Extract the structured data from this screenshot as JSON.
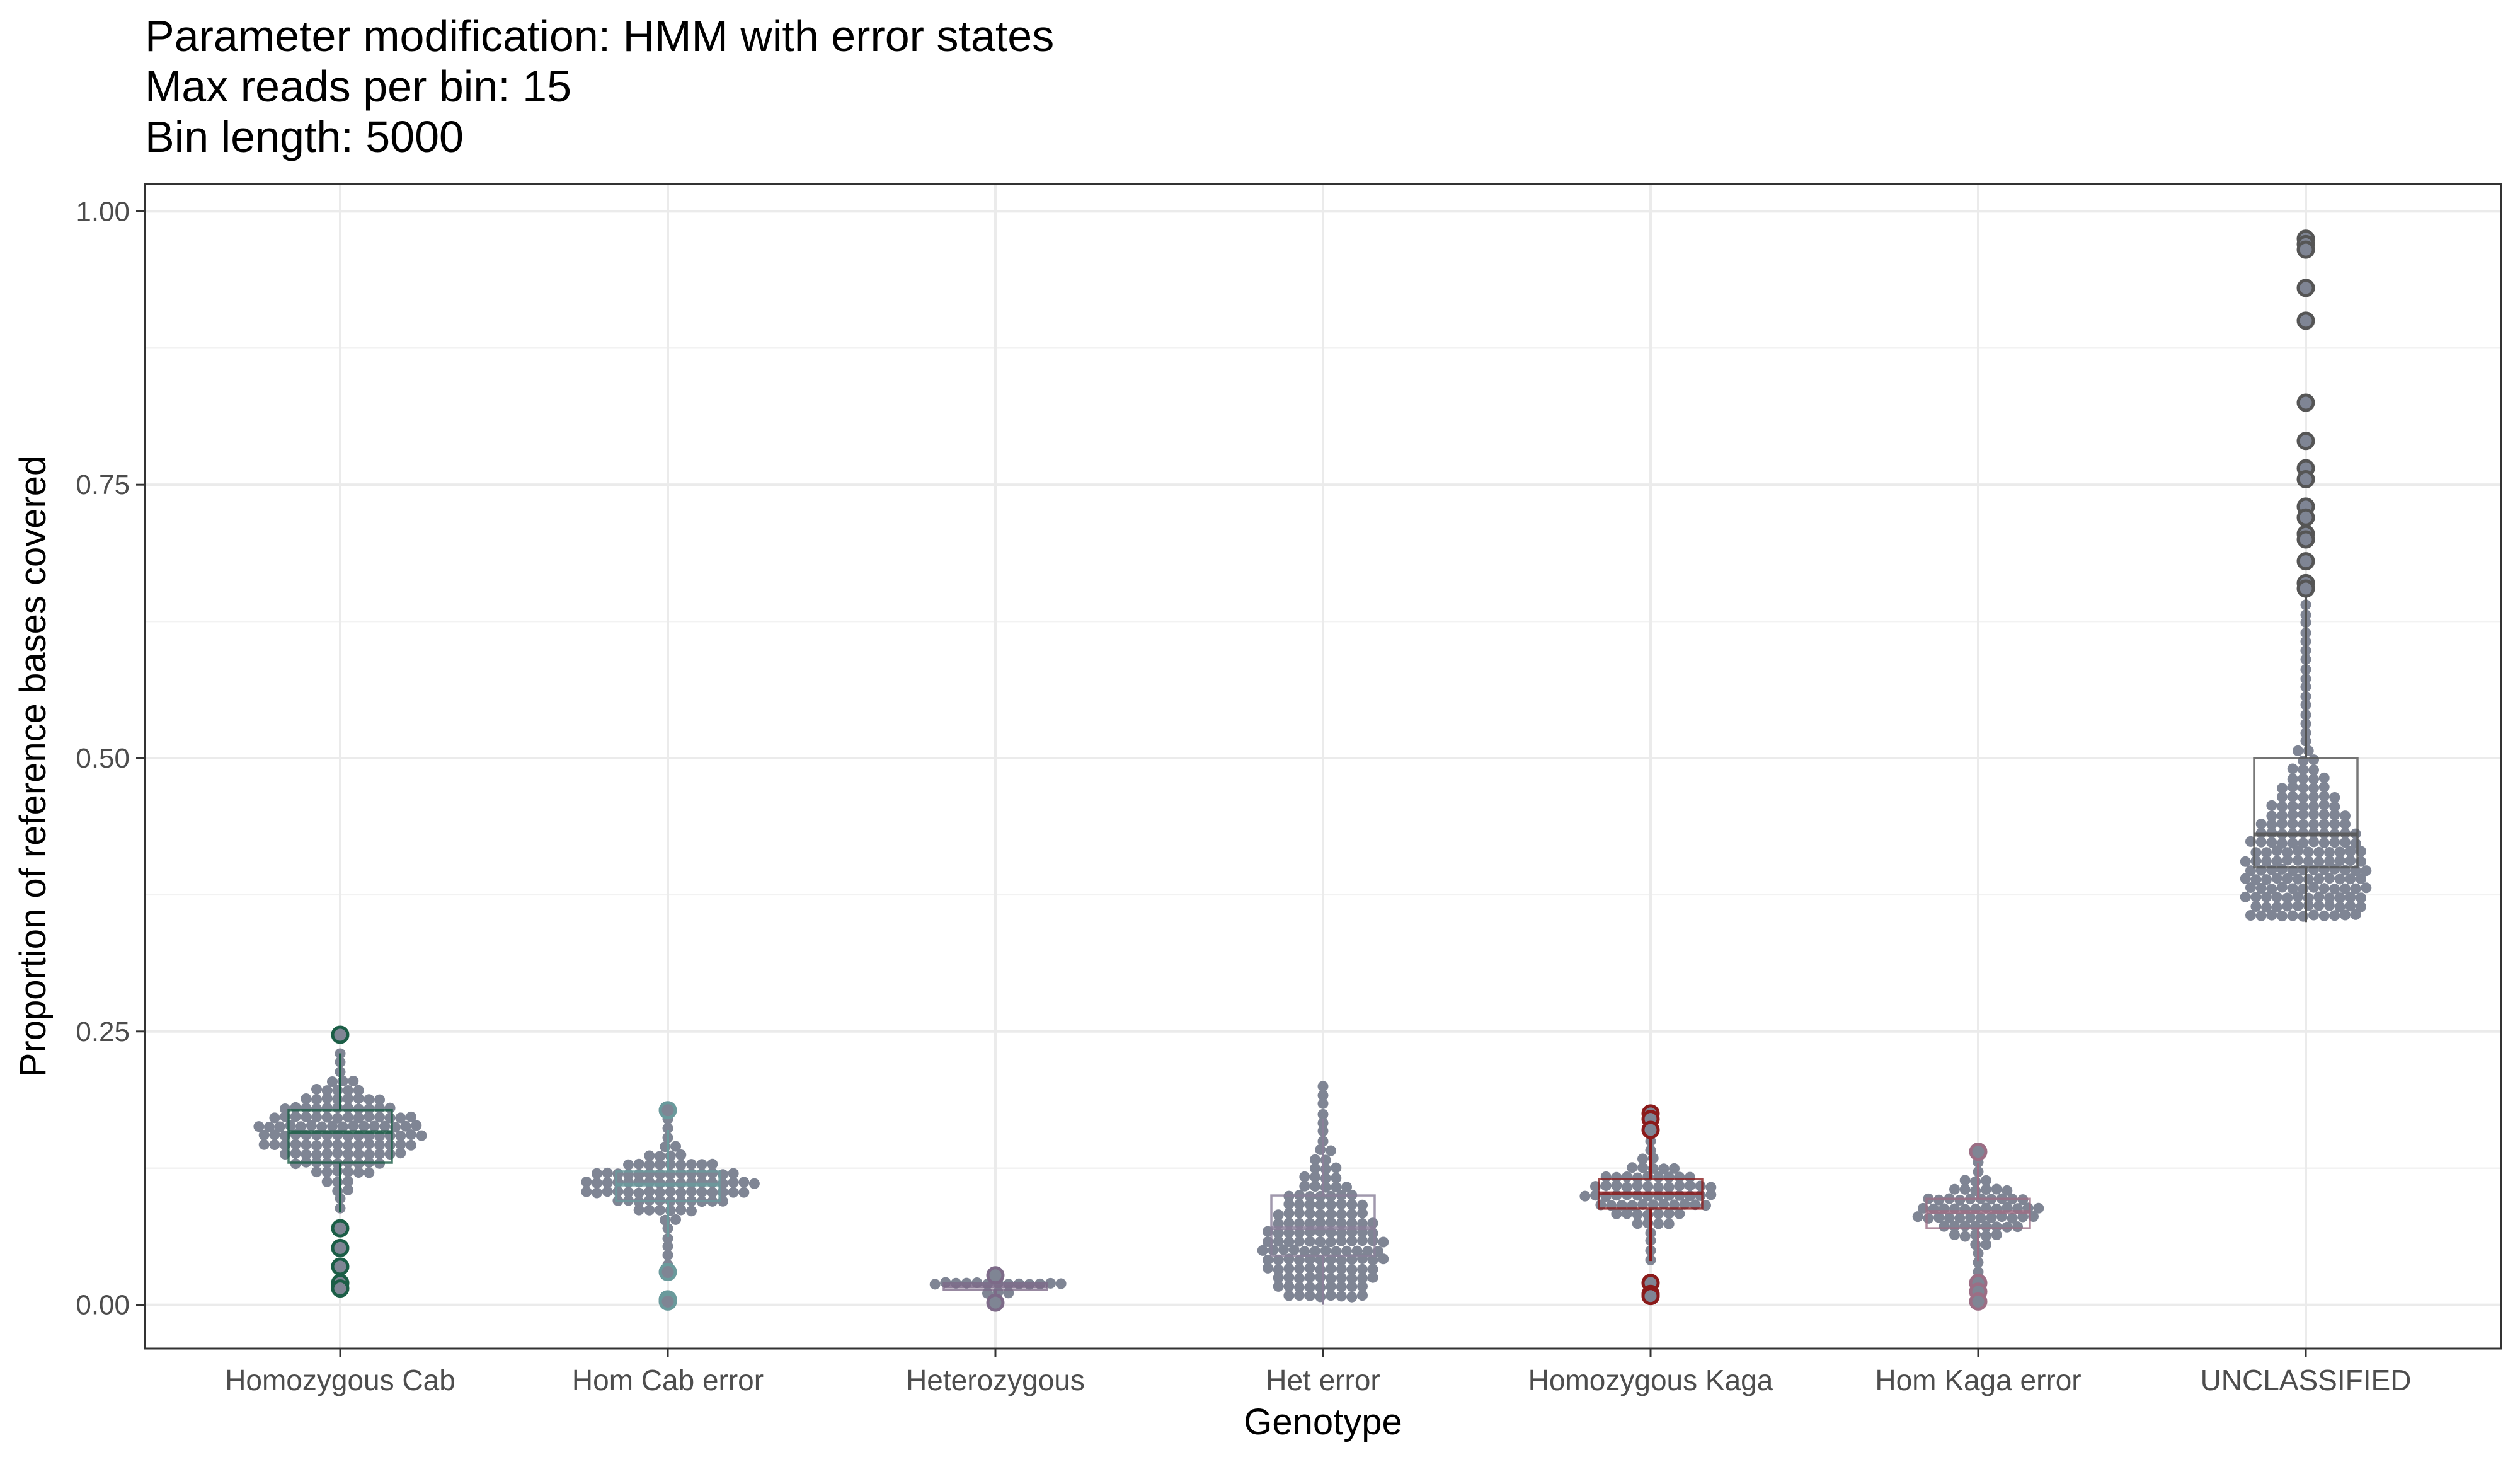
{
  "title_lines": [
    "Parameter modification: HMM with error states",
    "Max reads per bin: 15",
    "Bin length: 5000"
  ],
  "chart_data": {
    "type": "beeswarm",
    "title": "Parameter modification: HMM with error states\nMax reads per bin: 15\nBin length: 5000",
    "xlabel": "Genotype",
    "ylabel": "Proportion of reference bases covered",
    "ylim": [
      -0.04,
      1.025
    ],
    "yticks": [
      "0.00",
      "0.25",
      "0.50",
      "0.75",
      "1.00"
    ],
    "ytick_values": [
      0,
      0.25,
      0.5,
      0.75,
      1.0
    ],
    "grid": true,
    "legend": "none",
    "point_color": "#7f8594",
    "categories": [
      "Homozygous Cab",
      "Hom Cab error",
      "Heterozygous",
      "Het error",
      "Homozygous Kaga",
      "Hom Kaga error",
      "UNCLASSIFIED"
    ],
    "series": [
      {
        "category": "Homozygous Cab",
        "box": {
          "q1": 0.13,
          "median": 0.158,
          "q3": 0.178,
          "whisker_low": 0.085,
          "whisker_high": 0.23
        },
        "box_color": "#1b5e46",
        "outliers": [
          0.247,
          0.07,
          0.052,
          0.035,
          0.02,
          0.015
        ],
        "distribution": {
          "center": 0.158,
          "spread": 0.025,
          "min": 0.085,
          "max": 0.23,
          "max_halfwidth": 0.52,
          "density": 1.0
        }
      },
      {
        "category": "Hom Cab error",
        "box": {
          "q1": 0.095,
          "median": 0.11,
          "q3": 0.122,
          "whisker_low": 0.062,
          "whisker_high": 0.16
        },
        "box_color": "#6a9a9c",
        "outliers": [
          0.178,
          0.03,
          0.005,
          0.003
        ],
        "distribution": {
          "center": 0.11,
          "spread": 0.016,
          "min": 0.02,
          "max": 0.17,
          "max_halfwidth": 0.55,
          "density": 1.0
        }
      },
      {
        "category": "Heterozygous",
        "box": {
          "q1": 0.014,
          "median": 0.017,
          "q3": 0.02,
          "whisker_low": 0.006,
          "whisker_high": 0.028
        },
        "box_color": "#7d6a88",
        "outliers": [
          0.027,
          0.002
        ],
        "distribution": {
          "center": 0.017,
          "spread": 0.003,
          "min": 0.002,
          "max": 0.028,
          "max_halfwidth": 0.6,
          "density": 1.0
        }
      },
      {
        "category": "Het error",
        "box": {
          "q1": 0.045,
          "median": 0.07,
          "q3": 0.1,
          "whisker_low": 0.0,
          "whisker_high": 0.17
        },
        "box_color": "#8a7f99",
        "outliers": [],
        "distribution": {
          "center": 0.05,
          "spread": 0.045,
          "min": 0.0,
          "max": 0.2,
          "max_halfwidth": 0.48,
          "density": 0.8
        }
      },
      {
        "category": "Homozygous Kaga",
        "box": {
          "q1": 0.088,
          "median": 0.102,
          "q3": 0.115,
          "whisker_low": 0.04,
          "whisker_high": 0.155
        },
        "box_color": "#8b1a1a",
        "outliers": [
          0.175,
          0.17,
          0.16,
          0.02,
          0.01,
          0.008
        ],
        "distribution": {
          "center": 0.102,
          "spread": 0.017,
          "min": 0.04,
          "max": 0.15,
          "max_halfwidth": 0.42,
          "density": 1.0
        }
      },
      {
        "category": "Hom Kaga error",
        "box": {
          "q1": 0.07,
          "median": 0.085,
          "q3": 0.097,
          "whisker_low": 0.04,
          "whisker_high": 0.13
        },
        "box_color": "#9c6e85",
        "outliers": [
          0.14,
          0.02,
          0.012,
          0.003
        ],
        "distribution": {
          "center": 0.086,
          "spread": 0.016,
          "min": 0.0,
          "max": 0.13,
          "max_halfwidth": 0.4,
          "density": 1.0
        }
      },
      {
        "category": "UNCLASSIFIED",
        "box": {
          "q1": 0.4,
          "median": 0.43,
          "q3": 0.5,
          "whisker_low": 0.35,
          "whisker_high": 0.65
        },
        "box_color": "#555555",
        "outliers": [
          0.975,
          0.97,
          0.965,
          0.93,
          0.9,
          0.825,
          0.79,
          0.765,
          0.755,
          0.73,
          0.72,
          0.705,
          0.7,
          0.68,
          0.66,
          0.655
        ],
        "distribution": {
          "center": 0.39,
          "spread": 0.06,
          "min": 0.35,
          "max": 0.64,
          "max_halfwidth": 0.4,
          "density": 1.0
        }
      }
    ]
  }
}
